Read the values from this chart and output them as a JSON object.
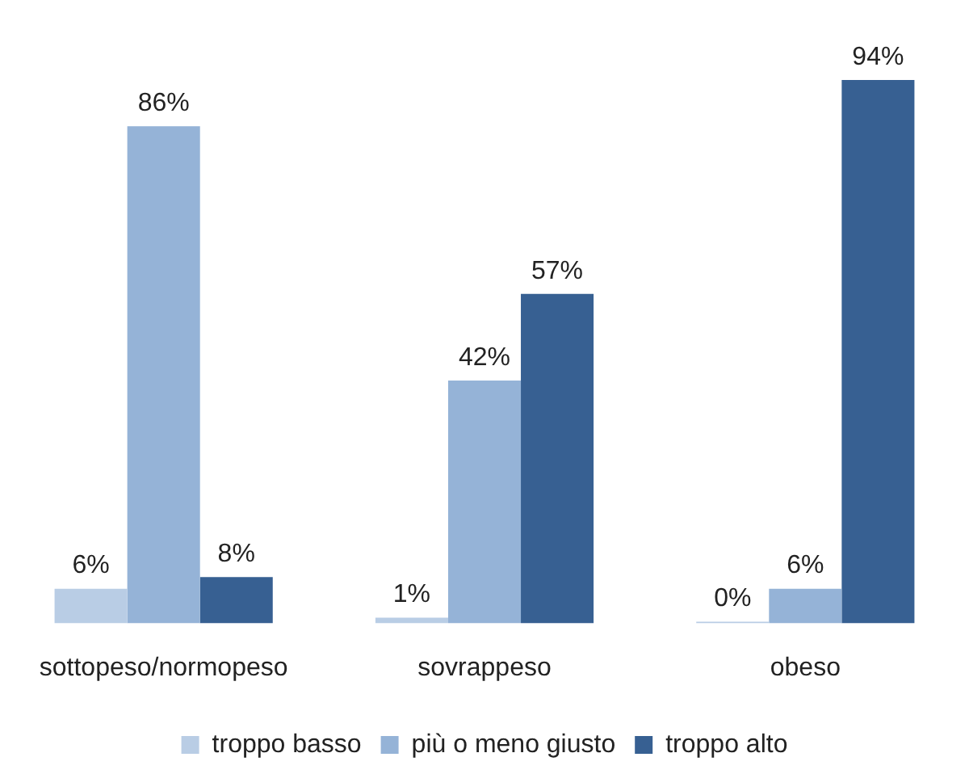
{
  "chart_data": {
    "type": "bar",
    "categories": [
      "sottopeso/normopeso",
      "sovrappeso",
      "obeso"
    ],
    "series": [
      {
        "name": "troppo basso",
        "color": "#b9cde5",
        "values": [
          6,
          1,
          0
        ],
        "value_labels": [
          "6%",
          "1%",
          "0%"
        ]
      },
      {
        "name": "più o meno giusto",
        "color": "#95b3d7",
        "values": [
          86,
          42,
          6
        ],
        "value_labels": [
          "86%",
          "42%",
          "6%"
        ]
      },
      {
        "name": "troppo alto",
        "color": "#376092",
        "values": [
          8,
          57,
          94
        ],
        "value_labels": [
          "8%",
          "57%",
          "94%"
        ]
      }
    ],
    "legend": "bottom",
    "tick_labels": "x"
  }
}
